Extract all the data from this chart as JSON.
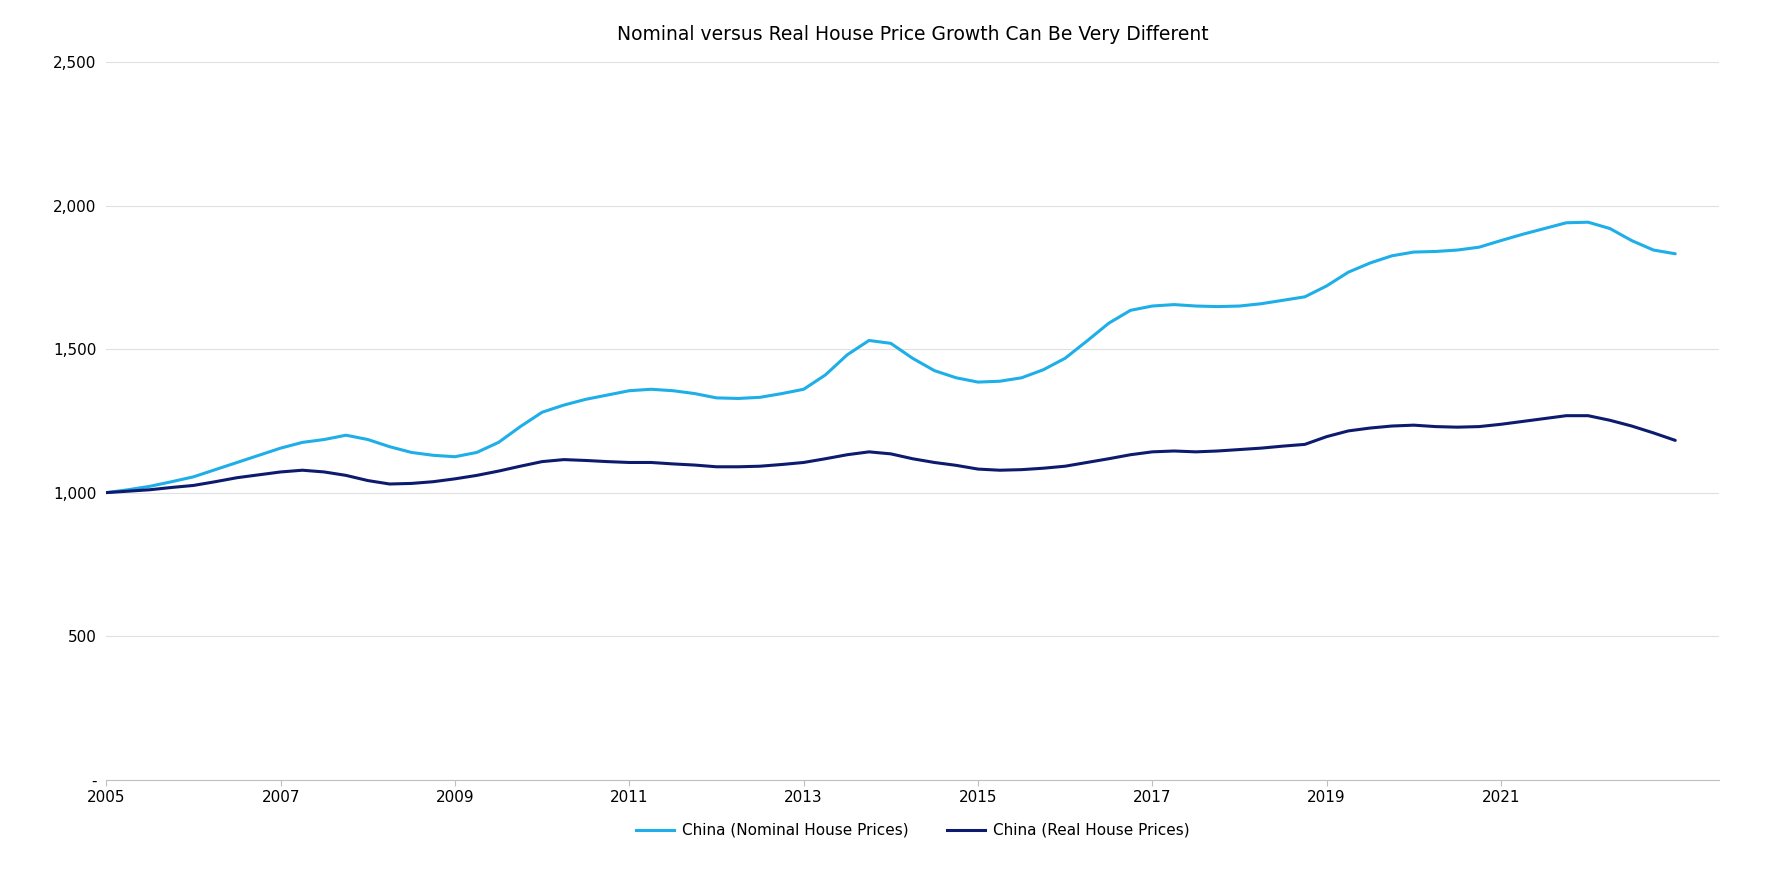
{
  "title": "Nominal versus Real House Price Growth Can Be Very Different",
  "title_fontsize": 13.5,
  "nominal_x": [
    2005.0,
    2005.25,
    2005.5,
    2005.75,
    2006.0,
    2006.25,
    2006.5,
    2006.75,
    2007.0,
    2007.25,
    2007.5,
    2007.75,
    2008.0,
    2008.25,
    2008.5,
    2008.75,
    2009.0,
    2009.25,
    2009.5,
    2009.75,
    2010.0,
    2010.25,
    2010.5,
    2010.75,
    2011.0,
    2011.25,
    2011.5,
    2011.75,
    2012.0,
    2012.25,
    2012.5,
    2012.75,
    2013.0,
    2013.25,
    2013.5,
    2013.75,
    2014.0,
    2014.25,
    2014.5,
    2014.75,
    2015.0,
    2015.25,
    2015.5,
    2015.75,
    2016.0,
    2016.25,
    2016.5,
    2016.75,
    2017.0,
    2017.25,
    2017.5,
    2017.75,
    2018.0,
    2018.25,
    2018.5,
    2018.75,
    2019.0,
    2019.25,
    2019.5,
    2019.75,
    2020.0,
    2020.25,
    2020.5,
    2020.75,
    2021.0,
    2021.25,
    2021.5,
    2021.75,
    2022.0,
    2022.25,
    2022.5,
    2022.75,
    2023.0
  ],
  "nominal_y": [
    1000,
    1010,
    1022,
    1038,
    1055,
    1080,
    1105,
    1130,
    1155,
    1175,
    1185,
    1200,
    1185,
    1160,
    1140,
    1130,
    1125,
    1140,
    1175,
    1230,
    1280,
    1305,
    1325,
    1340,
    1355,
    1360,
    1355,
    1345,
    1330,
    1328,
    1332,
    1345,
    1360,
    1410,
    1480,
    1530,
    1520,
    1468,
    1425,
    1400,
    1385,
    1388,
    1400,
    1428,
    1468,
    1528,
    1590,
    1635,
    1650,
    1655,
    1650,
    1648,
    1650,
    1658,
    1670,
    1682,
    1720,
    1768,
    1800,
    1825,
    1838,
    1840,
    1845,
    1855,
    1878,
    1900,
    1920,
    1940,
    1942,
    1920,
    1878,
    1845,
    1832
  ],
  "real_x": [
    2005.0,
    2005.25,
    2005.5,
    2005.75,
    2006.0,
    2006.25,
    2006.5,
    2006.75,
    2007.0,
    2007.25,
    2007.5,
    2007.75,
    2008.0,
    2008.25,
    2008.5,
    2008.75,
    2009.0,
    2009.25,
    2009.5,
    2009.75,
    2010.0,
    2010.25,
    2010.5,
    2010.75,
    2011.0,
    2011.25,
    2011.5,
    2011.75,
    2012.0,
    2012.25,
    2012.5,
    2012.75,
    2013.0,
    2013.25,
    2013.5,
    2013.75,
    2014.0,
    2014.25,
    2014.5,
    2014.75,
    2015.0,
    2015.25,
    2015.5,
    2015.75,
    2016.0,
    2016.25,
    2016.5,
    2016.75,
    2017.0,
    2017.25,
    2017.5,
    2017.75,
    2018.0,
    2018.25,
    2018.5,
    2018.75,
    2019.0,
    2019.25,
    2019.5,
    2019.75,
    2020.0,
    2020.25,
    2020.5,
    2020.75,
    2021.0,
    2021.25,
    2021.5,
    2021.75,
    2022.0,
    2022.25,
    2022.5,
    2022.75,
    2023.0
  ],
  "real_y": [
    1000,
    1005,
    1010,
    1018,
    1025,
    1038,
    1052,
    1062,
    1072,
    1078,
    1072,
    1060,
    1042,
    1030,
    1032,
    1038,
    1048,
    1060,
    1075,
    1092,
    1108,
    1115,
    1112,
    1108,
    1105,
    1105,
    1100,
    1096,
    1090,
    1090,
    1092,
    1098,
    1105,
    1118,
    1132,
    1142,
    1135,
    1118,
    1105,
    1095,
    1082,
    1078,
    1080,
    1085,
    1092,
    1105,
    1118,
    1132,
    1142,
    1145,
    1142,
    1145,
    1150,
    1155,
    1162,
    1168,
    1195,
    1215,
    1225,
    1232,
    1235,
    1230,
    1228,
    1230,
    1238,
    1248,
    1258,
    1268,
    1268,
    1252,
    1232,
    1208,
    1182
  ],
  "nominal_color": "#1EAEE8",
  "real_color": "#0D1B6E",
  "nominal_label": "China (Nominal House Prices)",
  "real_label": "China (Real House Prices)",
  "xlim": [
    2005,
    2023.5
  ],
  "ylim": [
    0,
    2500
  ],
  "yticks": [
    0,
    500,
    1000,
    1500,
    2000,
    2500
  ],
  "ytick_labels": [
    "-",
    "500",
    "1,000",
    "1,500",
    "2,000",
    "2,500"
  ],
  "xticks": [
    2005,
    2007,
    2009,
    2011,
    2013,
    2015,
    2017,
    2019,
    2021
  ],
  "line_width": 2.2,
  "legend_fontsize": 11,
  "tick_fontsize": 11,
  "background_color": "#FFFFFF",
  "grid_color": "#E0E0E0",
  "spine_color": "#C0C0C0"
}
